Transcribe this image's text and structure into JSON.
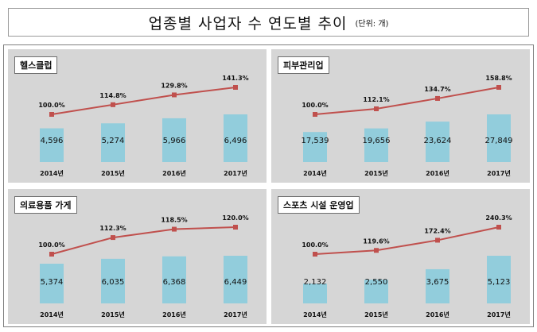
{
  "header": {
    "title": "업종별 사업자 수 연도별 추이",
    "unit": "(단위: 개)"
  },
  "colors": {
    "bar": "#92cddc",
    "line": "#c0504d",
    "panel_bg": "#d6d6d6"
  },
  "chart_data": [
    {
      "type": "bar",
      "title": "헬스클럽",
      "categories": [
        "2014년",
        "2015년",
        "2016년",
        "2017년"
      ],
      "values": [
        4596,
        5274,
        5966,
        6496
      ],
      "value_labels": [
        "4,596",
        "5,274",
        "5,966",
        "6,496"
      ],
      "line": {
        "values": [
          100.0,
          114.8,
          129.8,
          141.3
        ],
        "labels": [
          "100.0%",
          "114.8%",
          "129.8%",
          "141.3%"
        ]
      }
    },
    {
      "type": "bar",
      "title": "피부관리업",
      "categories": [
        "2014년",
        "2015년",
        "2016년",
        "2017년"
      ],
      "values": [
        17539,
        19656,
        23624,
        27849
      ],
      "value_labels": [
        "17,539",
        "19,656",
        "23,624",
        "27,849"
      ],
      "line": {
        "values": [
          100.0,
          112.1,
          134.7,
          158.8
        ],
        "labels": [
          "100.0%",
          "112.1%",
          "134.7%",
          "158.8%"
        ]
      }
    },
    {
      "type": "bar",
      "title": "의료용품 가게",
      "categories": [
        "2014년",
        "2015년",
        "2016년",
        "2017년"
      ],
      "values": [
        5374,
        6035,
        6368,
        6449
      ],
      "value_labels": [
        "5,374",
        "6,035",
        "6,368",
        "6,449"
      ],
      "line": {
        "values": [
          100.0,
          112.3,
          118.5,
          120.0
        ],
        "labels": [
          "100.0%",
          "112.3%",
          "118.5%",
          "120.0%"
        ]
      }
    },
    {
      "type": "bar",
      "title": "스포츠 시설 운영업",
      "categories": [
        "2014년",
        "2015년",
        "2016년",
        "2017년"
      ],
      "values": [
        2132,
        2550,
        3675,
        5123
      ],
      "value_labels": [
        "2,132",
        "2,550",
        "3,675",
        "5,123"
      ],
      "line": {
        "values": [
          100.0,
          119.6,
          172.4,
          240.3
        ],
        "labels": [
          "100.0%",
          "119.6%",
          "172.4%",
          "240.3%"
        ]
      }
    }
  ]
}
